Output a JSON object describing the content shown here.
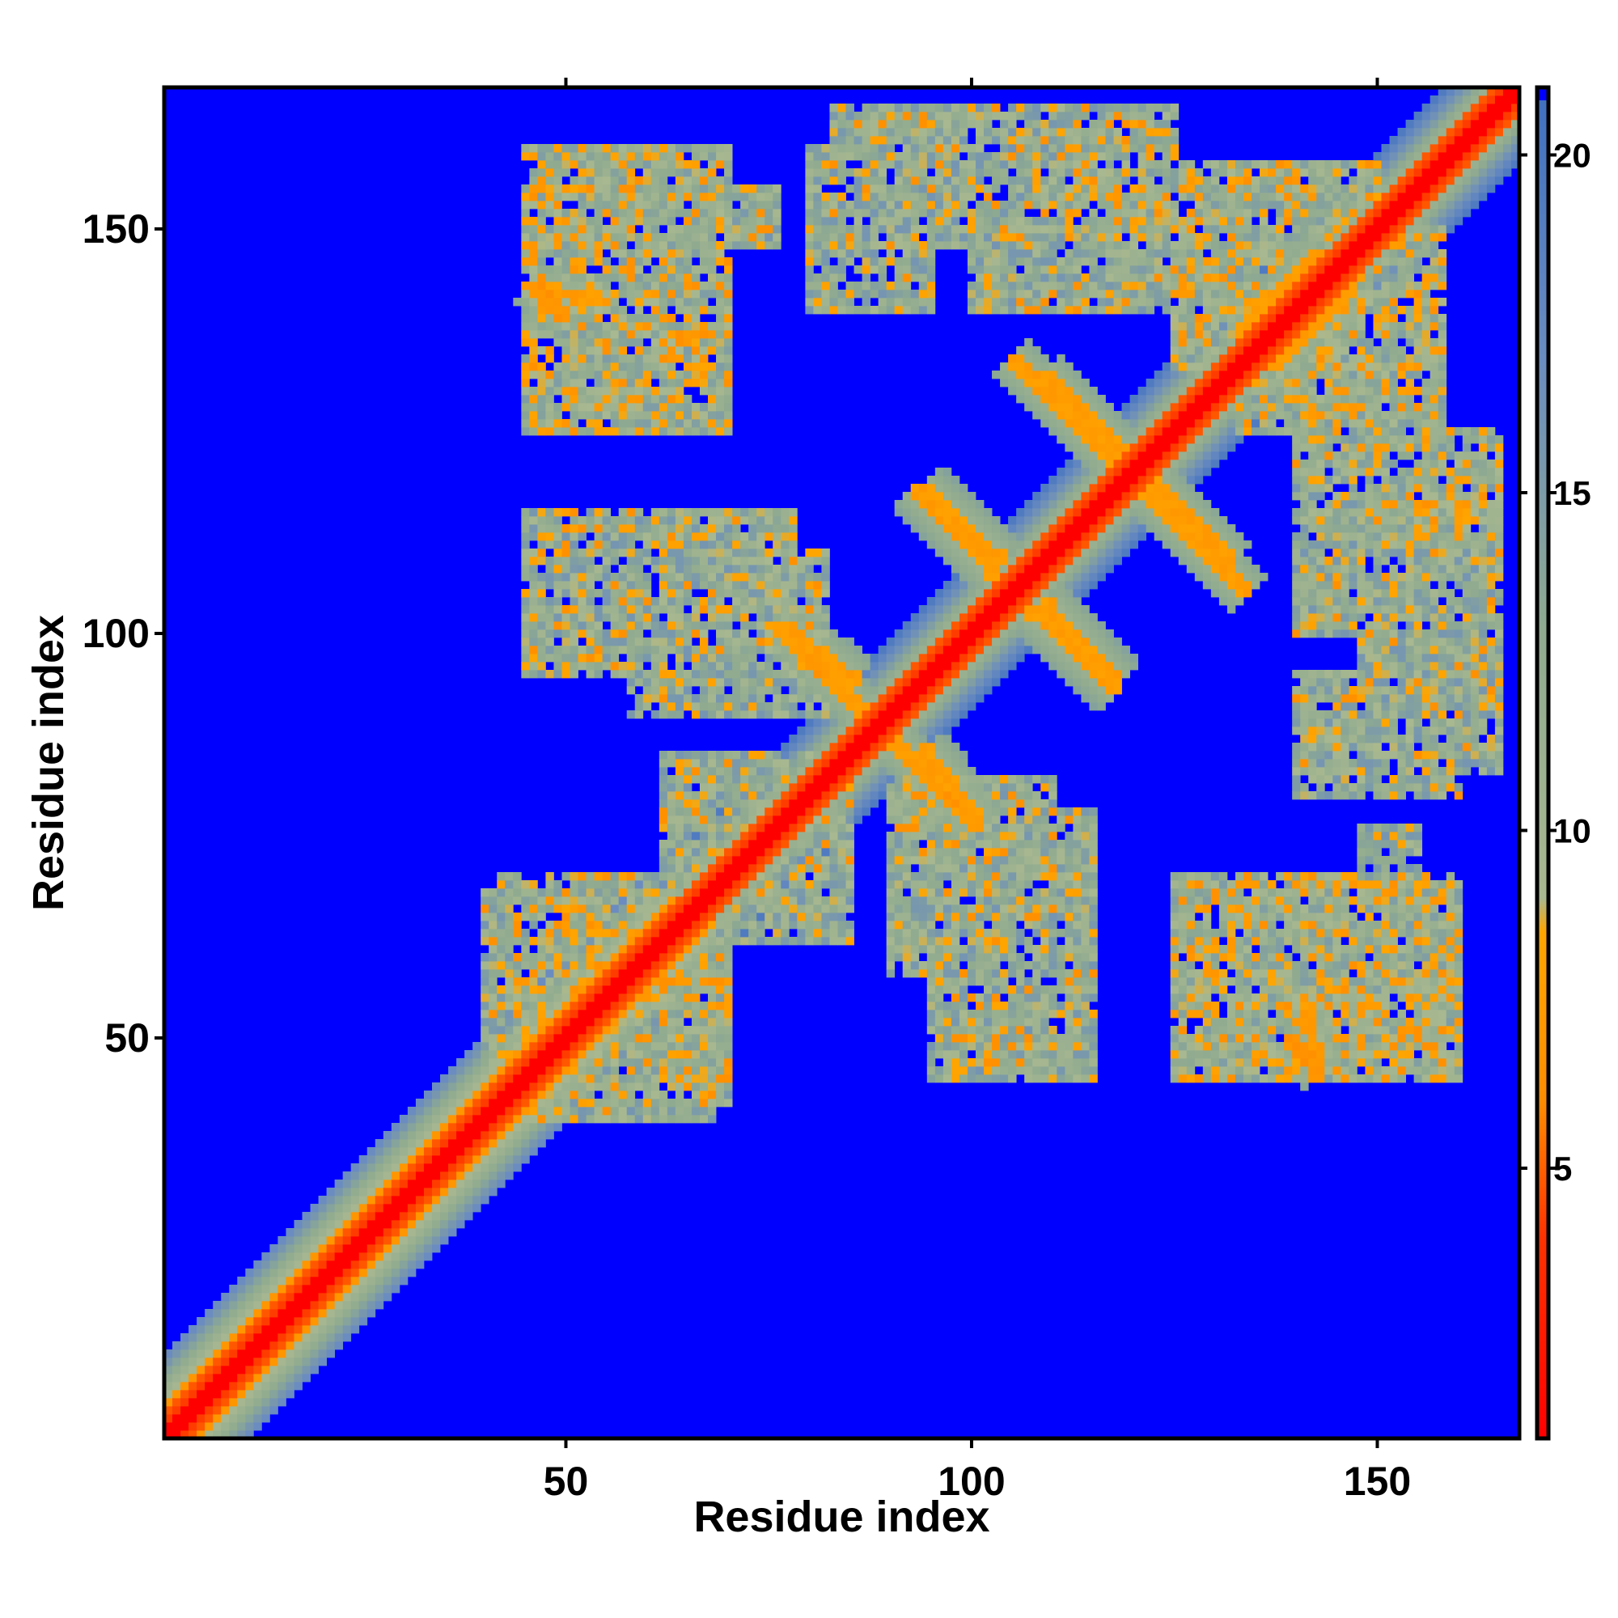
{
  "chart_data": {
    "type": "heatmap",
    "title": "",
    "xlabel": "Residue index",
    "ylabel": "Residue index",
    "n_residues": 167,
    "xlim": [
      1,
      167
    ],
    "ylim": [
      1,
      167
    ],
    "x_ticks": [
      50,
      100,
      150
    ],
    "y_ticks": [
      50,
      100,
      150
    ],
    "colorbar": {
      "ticks": [
        5,
        10,
        15,
        20
      ],
      "range": [
        1,
        21
      ],
      "stops": [
        {
          "value": 1,
          "color": "#ff0000"
        },
        {
          "value": 4,
          "color": "#ff3300"
        },
        {
          "value": 6,
          "color": "#ff8c00"
        },
        {
          "value": 8.5,
          "color": "#ffa500"
        },
        {
          "value": 9,
          "color": "#a8b890"
        },
        {
          "value": 13,
          "color": "#8faa90"
        },
        {
          "value": 17,
          "color": "#6a8cc0"
        },
        {
          "value": 21,
          "color": "#3f6fc0"
        }
      ],
      "overflow_color": "#0000ff",
      "overflow_threshold": 20.5
    },
    "colors": {
      "background_far": "#0000ff",
      "diagonal": "#ff0000",
      "near_contact": "#ffa500",
      "medium_contact": "#a8b890",
      "far_contact": "#6a8cc0"
    },
    "structure": {
      "diagonal": "distance rises from ~1 on the diagonal to ~20 about 8-10 residues away",
      "helix_region_start": 1,
      "helix_region_end": 65,
      "contact_blocks": [
        {
          "x": [
            42,
            68
          ],
          "y": [
            40,
            70
          ],
          "level": 12
        },
        {
          "x": [
            52,
            70
          ],
          "y": [
            130,
            150
          ],
          "level": 11
        },
        {
          "x": [
            57,
            76
          ],
          "y": [
            148,
            155
          ],
          "level": 12
        },
        {
          "x": [
            83,
            100
          ],
          "y": [
            148,
            165
          ],
          "level": 12
        },
        {
          "x": [
            102,
            112
          ],
          "y": [
            150,
            165
          ],
          "level": 12
        },
        {
          "x": [
            112,
            125
          ],
          "y": [
            148,
            163
          ],
          "level": 11
        },
        {
          "x": [
            133,
            158
          ],
          "y": [
            125,
            150
          ],
          "level": 11
        },
        {
          "x": [
            140,
            165
          ],
          "y": [
            100,
            125
          ],
          "level": 12
        },
        {
          "x": [
            140,
            160
          ],
          "y": [
            80,
            95
          ],
          "level": 12
        },
        {
          "x": [
            125,
            160
          ],
          "y": [
            45,
            70
          ],
          "level": 11
        },
        {
          "x": [
            95,
            115
          ],
          "y": [
            45,
            65
          ],
          "level": 12
        },
        {
          "x": [
            98,
            115
          ],
          "y": [
            60,
            78
          ],
          "level": 12
        },
        {
          "x": [
            58,
            82
          ],
          "y": [
            90,
            110
          ],
          "level": 12
        },
        {
          "x": [
            62,
            85
          ],
          "y": [
            70,
            85
          ],
          "level": 12
        },
        {
          "x": [
            44,
            60
          ],
          "y": [
            48,
            70
          ],
          "level": 11
        }
      ],
      "strand_pairs": [
        {
          "from": [
            77,
            101
          ],
          "to": [
            86,
            94
          ],
          "level": 7
        },
        {
          "from": [
            89,
            88
          ],
          "to": [
            101,
            76
          ],
          "level": 7
        },
        {
          "from": [
            109,
            132
          ],
          "to": [
            121,
            120
          ],
          "level": 7
        },
        {
          "from": [
            93,
            118
          ],
          "to": [
            103,
            107
          ],
          "level": 7
        },
        {
          "from": [
            121,
            118
          ],
          "to": [
            134,
            105
          ],
          "level": 7
        },
        {
          "from": [
            109,
            104
          ],
          "to": [
            118,
            94
          ],
          "level": 7
        },
        {
          "from": [
            133,
            137
          ],
          "to": [
            143,
            147
          ],
          "level": 7
        },
        {
          "from": [
            141,
            55
          ],
          "to": [
            143,
            45
          ],
          "level": 7
        },
        {
          "from": [
            46,
            143
          ],
          "to": [
            50,
            139
          ],
          "level": 6
        }
      ]
    }
  }
}
